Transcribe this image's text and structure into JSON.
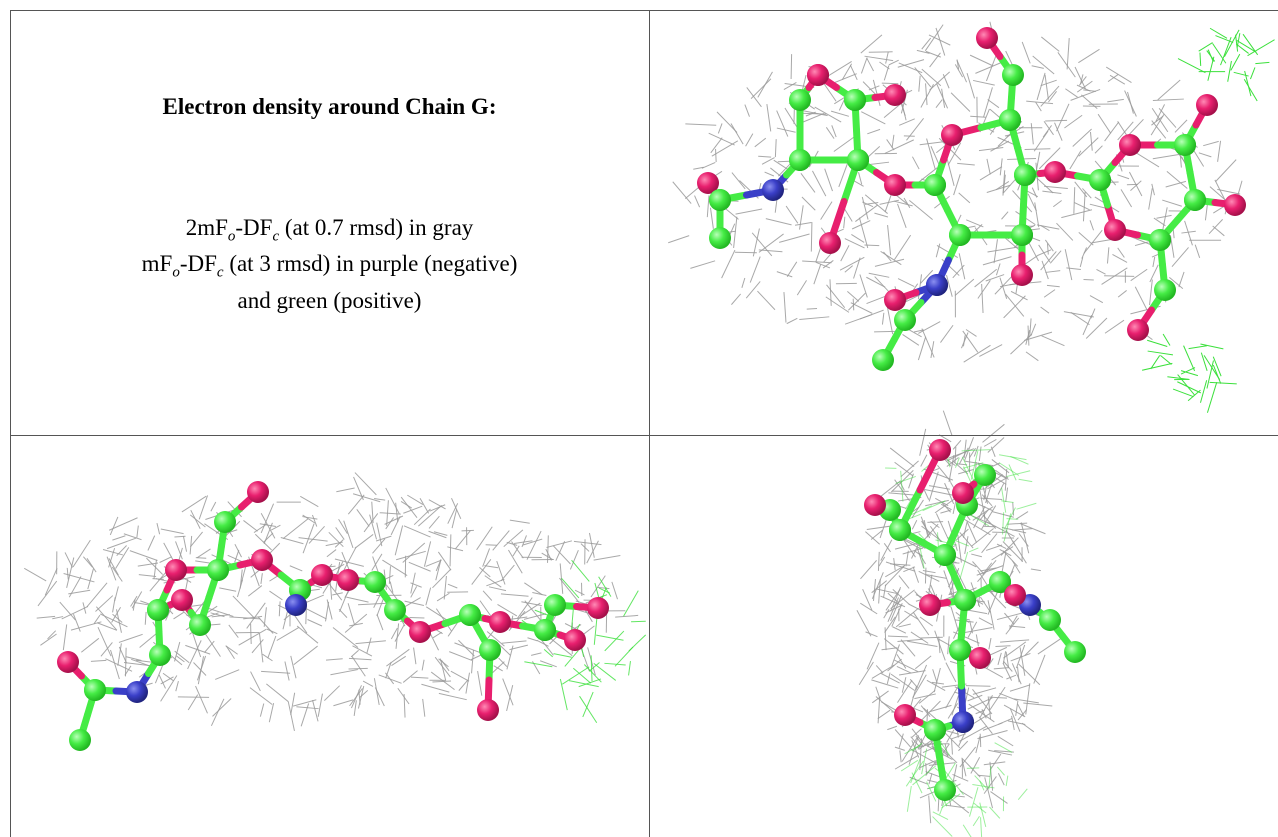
{
  "caption": {
    "title": "Electron density around Chain G:",
    "lines": [
      [
        "2mF",
        "o",
        "-DF",
        "c",
        " (at 0.7 rmsd) in gray"
      ],
      [
        "mF",
        "o",
        "-DF",
        "c",
        " (at 3 rmsd) in purple (negative)"
      ],
      [
        "and green (positive)"
      ]
    ]
  }
}
